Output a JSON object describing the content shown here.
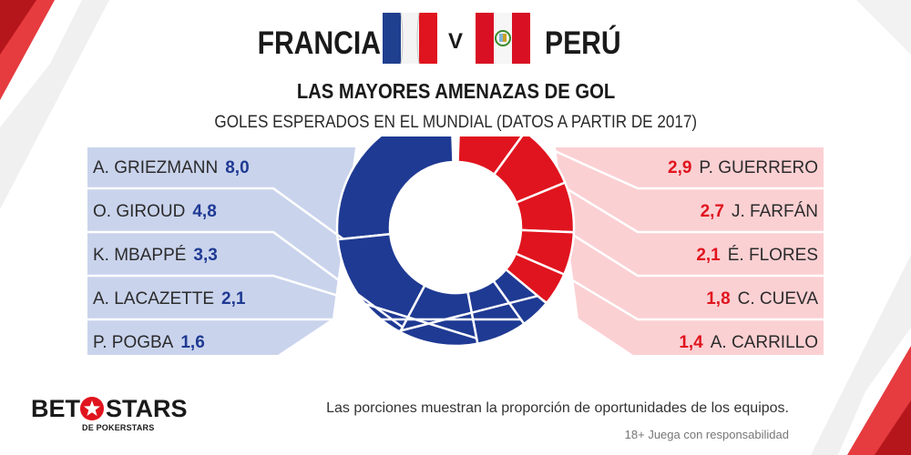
{
  "header": {
    "team_left": "FRANCIA",
    "versus": "V",
    "team_right": "PERÚ",
    "title": "LAS MAYORES AMENAZAS DE GOL",
    "subtitle": "GOLES ESPERADOS EN EL MUNDIAL (DATOS A PARTIR DE 2017)"
  },
  "chart_data": {
    "type": "pie",
    "title": "LAS MAYORES AMENAZAS DE GOL",
    "subtitle": "GOLES ESPERADOS EN EL MUNDIAL (DATOS A PARTIR DE 2017)",
    "series": [
      {
        "name": "FRANCIA",
        "color": "#1f3a93",
        "players": [
          {
            "name": "A. GRIEZMANN",
            "value_label": "8,0",
            "value": 8.0
          },
          {
            "name": "O. GIROUD",
            "value_label": "4,8",
            "value": 4.8
          },
          {
            "name": "K. MBAPPÉ",
            "value_label": "3,3",
            "value": 3.3
          },
          {
            "name": "A. LACAZETTE",
            "value_label": "2,1",
            "value": 2.1
          },
          {
            "name": "P. POGBA",
            "value_label": "1,6",
            "value": 1.6
          }
        ]
      },
      {
        "name": "PERÚ",
        "color": "#e0141e",
        "players": [
          {
            "name": "P. GUERRERO",
            "value_label": "2,9",
            "value": 2.9
          },
          {
            "name": "J. FARFÁN",
            "value_label": "2,7",
            "value": 2.7
          },
          {
            "name": "É. FLORES",
            "value_label": "2,1",
            "value": 2.1
          },
          {
            "name": "C. CUEVA",
            "value_label": "1,8",
            "value": 1.8
          },
          {
            "name": "A. CARRILLO",
            "value_label": "1,4",
            "value": 1.4
          }
        ]
      }
    ]
  },
  "colors": {
    "france": "#1f3a93",
    "peru": "#e0141e",
    "france_panel": "#c9d3ec",
    "peru_panel": "#fbd0d3",
    "remainder": "#e4e4e4"
  },
  "footer": {
    "note": "Las porciones muestran la proporción de oportunidades de los equipos.",
    "disclaimer": "18+ Juega con responsabilidad",
    "logo_bet": "BET",
    "logo_stars": "STARS",
    "logo_sub": "DE POKERSTARS"
  }
}
